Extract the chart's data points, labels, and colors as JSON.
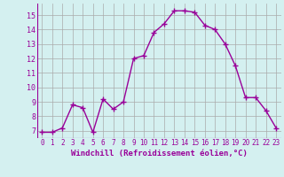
{
  "x": [
    0,
    1,
    2,
    3,
    4,
    5,
    6,
    7,
    8,
    9,
    10,
    11,
    12,
    13,
    14,
    15,
    16,
    17,
    18,
    19,
    20,
    21,
    22,
    23
  ],
  "y": [
    6.9,
    6.9,
    7.2,
    8.8,
    8.6,
    6.9,
    9.2,
    8.5,
    9.0,
    12.0,
    12.2,
    13.8,
    14.4,
    15.3,
    15.3,
    15.2,
    14.3,
    14.0,
    13.0,
    11.5,
    9.3,
    9.3,
    8.4,
    7.2
  ],
  "line_color": "#990099",
  "marker": "+",
  "marker_size": 4,
  "bg_color": "#d4f0f0",
  "grid_color": "#aaaaaa",
  "xlabel": "Windchill (Refroidissement éolien,°C)",
  "xlabel_color": "#990099",
  "tick_color": "#990099",
  "xlim_min": -0.5,
  "xlim_max": 23.5,
  "ylim_min": 6.5,
  "ylim_max": 15.8,
  "yticks": [
    7,
    8,
    9,
    10,
    11,
    12,
    13,
    14,
    15
  ],
  "xticks": [
    0,
    1,
    2,
    3,
    4,
    5,
    6,
    7,
    8,
    9,
    10,
    11,
    12,
    13,
    14,
    15,
    16,
    17,
    18,
    19,
    20,
    21,
    22,
    23
  ]
}
